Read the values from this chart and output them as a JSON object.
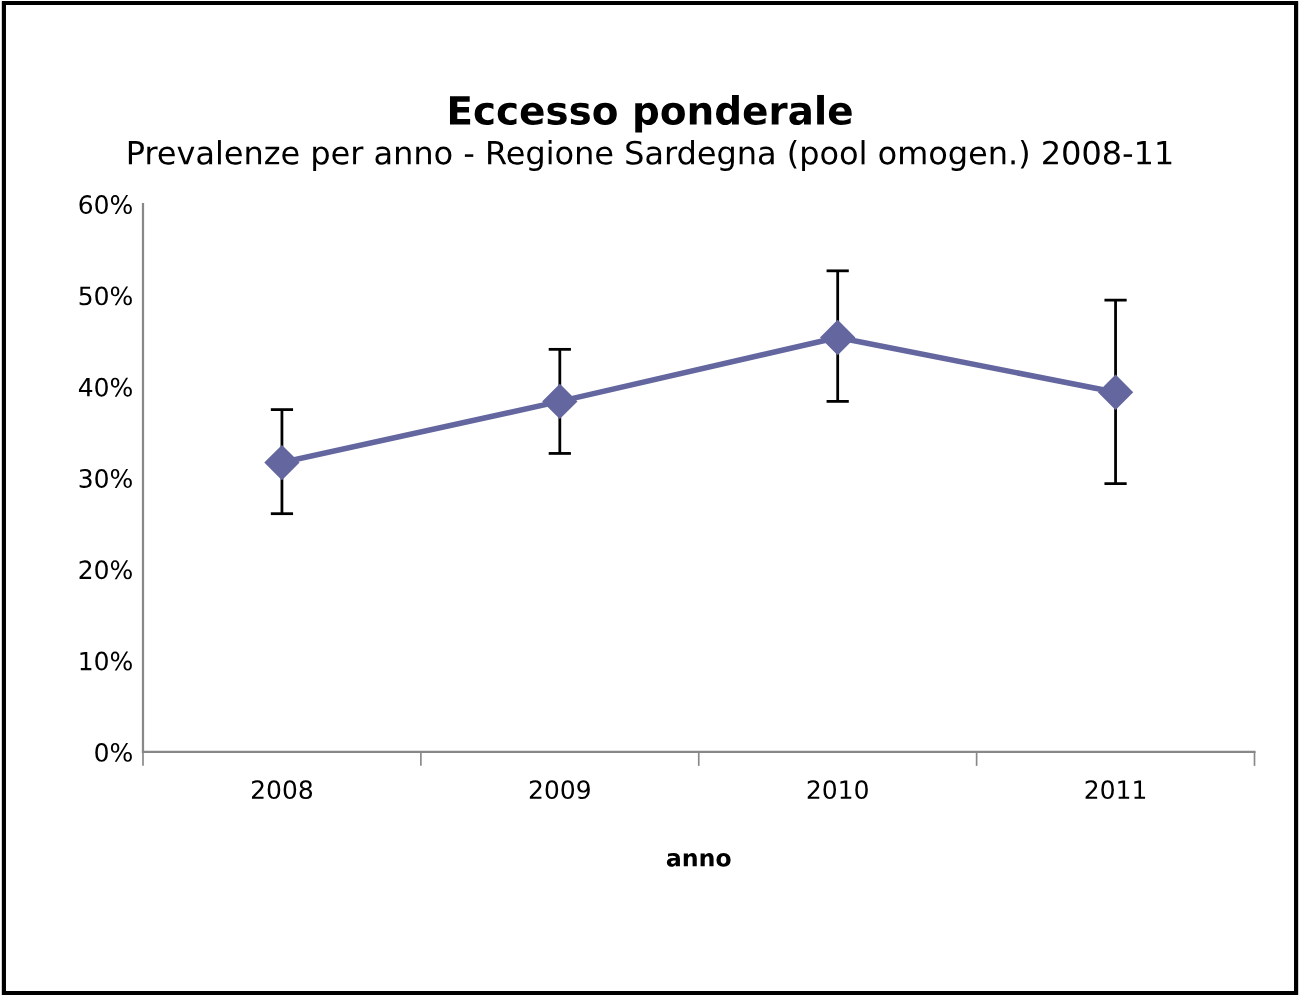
{
  "chart_data": {
    "type": "line",
    "title": "Eccesso ponderale",
    "subtitle": "Prevalenze per anno - Regione Sardegna (pool omogen.) 2008-11",
    "xlabel": "anno",
    "categories": [
      "2008",
      "2009",
      "2010",
      "2011"
    ],
    "series": [
      {
        "color": "#64669f",
        "values": [
          31.7,
          38.4,
          45.4,
          39.4
        ],
        "errors": [
          [
            26.1,
            37.5
          ],
          [
            32.7,
            44.1
          ],
          [
            38.4,
            52.7
          ],
          [
            29.4,
            49.5
          ]
        ]
      }
    ],
    "ylim": [
      0,
      60
    ],
    "yticks": [
      {
        "value": 0,
        "label": "0%"
      },
      {
        "value": 10,
        "label": "10%"
      },
      {
        "value": 20,
        "label": "20%"
      },
      {
        "value": 30,
        "label": "30%"
      },
      {
        "value": 40,
        "label": "40%"
      },
      {
        "value": 50,
        "label": "50%"
      },
      {
        "value": 60,
        "label": "60%"
      }
    ],
    "grid": false,
    "legend": false,
    "marker": "diamond",
    "line_style": "solid"
  }
}
